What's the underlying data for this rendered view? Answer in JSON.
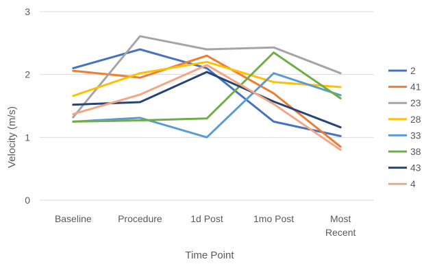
{
  "chart_data": {
    "type": "line",
    "title": "",
    "xlabel": "Time Point",
    "ylabel": "Velocity (m/s)",
    "categories": [
      "Baseline",
      "Procedure",
      "1d Post",
      "1mo Post",
      "Most Recent"
    ],
    "category_lines": [
      [
        "Baseline"
      ],
      [
        "Procedure"
      ],
      [
        "1d Post"
      ],
      [
        "1mo Post"
      ],
      [
        "Most",
        "Recent"
      ]
    ],
    "yticks": [
      "0",
      "1",
      "2",
      "3"
    ],
    "ylim": [
      0,
      3
    ],
    "grid": true,
    "legend_position": "right",
    "series": [
      {
        "name": "2",
        "color": "#4472C4",
        "values": [
          2.1,
          2.4,
          2.1,
          1.25,
          1.02
        ]
      },
      {
        "name": "41",
        "color": "#ED7D31",
        "values": [
          2.06,
          1.95,
          2.3,
          1.7,
          0.85
        ]
      },
      {
        "name": "23",
        "color": "#A5A5A5",
        "values": [
          1.32,
          2.61,
          2.4,
          2.43,
          2.02
        ]
      },
      {
        "name": "28",
        "color": "#FFC000",
        "values": [
          1.66,
          2.02,
          2.2,
          1.88,
          1.8
        ]
      },
      {
        "name": "33",
        "color": "#5B9BD5",
        "values": [
          1.25,
          1.31,
          1.0,
          2.02,
          1.67
        ]
      },
      {
        "name": "38",
        "color": "#70AD47",
        "values": [
          1.25,
          1.27,
          1.3,
          2.35,
          1.62
        ]
      },
      {
        "name": "43",
        "color": "#264478",
        "values": [
          1.52,
          1.56,
          2.04,
          1.57,
          1.16
        ]
      },
      {
        "name": "4",
        "color": "#F4A582",
        "values": [
          1.37,
          1.68,
          2.15,
          1.53,
          0.8
        ]
      }
    ]
  }
}
